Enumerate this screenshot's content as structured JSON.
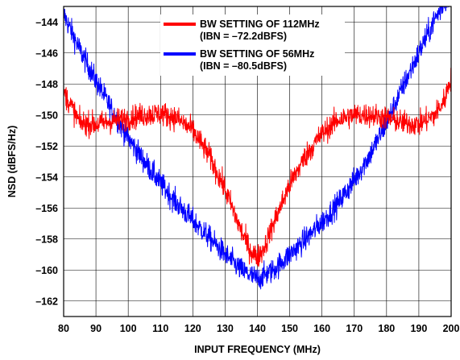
{
  "chart_data": {
    "type": "line",
    "xlabel": "INPUT FREQUENCY (MHz)",
    "ylabel": "NSD (dBFS/Hz)",
    "xlim": [
      80,
      200
    ],
    "ylim": [
      -163,
      -143
    ],
    "xticks": [
      80,
      90,
      100,
      110,
      120,
      130,
      140,
      150,
      160,
      170,
      180,
      190,
      200
    ],
    "yticks": [
      -144,
      -146,
      -148,
      -150,
      -152,
      -154,
      -156,
      -158,
      -160,
      -162
    ],
    "xtick_labels": [
      "80",
      "90",
      "100",
      "110",
      "120",
      "130",
      "140",
      "150",
      "160",
      "170",
      "180",
      "190",
      "200"
    ],
    "ytick_labels": [
      "–144",
      "–146",
      "–148",
      "–150",
      "–152",
      "–154",
      "–156",
      "–158",
      "–160",
      "–162"
    ],
    "grid": true,
    "legend_position": "top-center",
    "legend": [
      {
        "line1": "BW SETTING OF 112MHz",
        "line2": "(IBN = –72.2dBFS)",
        "color": "#ff0000"
      },
      {
        "line1": "BW SETTING OF 56MHz",
        "line2": "(IBN = –80.5dBFS)",
        "color": "#0000ff"
      }
    ],
    "series": [
      {
        "color": "#0000ff",
        "x": [
          80,
          85,
          90,
          95,
          100,
          105,
          110,
          115,
          120,
          125,
          130,
          135,
          140,
          145,
          150,
          155,
          160,
          165,
          170,
          175,
          180,
          185,
          190,
          195,
          200
        ],
        "y": [
          -143.5,
          -145.8,
          -147.8,
          -149.7,
          -151.5,
          -153.0,
          -154.4,
          -155.7,
          -156.8,
          -157.9,
          -159.0,
          -160.0,
          -160.6,
          -160.0,
          -159.0,
          -158.0,
          -156.9,
          -155.7,
          -154.2,
          -152.5,
          -150.5,
          -148.2,
          -146.0,
          -143.8,
          -142.0
        ],
        "noise": 0.55
      },
      {
        "color": "#ff0000",
        "x": [
          80,
          85,
          90,
          95,
          100,
          105,
          110,
          115,
          120,
          125,
          130,
          135,
          138,
          140,
          142,
          145,
          150,
          155,
          160,
          165,
          170,
          175,
          180,
          185,
          190,
          195,
          198,
          200
        ],
        "y": [
          -148.5,
          -150.5,
          -150.6,
          -150.4,
          -150.2,
          -150.0,
          -149.9,
          -150.2,
          -151.0,
          -152.6,
          -154.8,
          -157.5,
          -158.8,
          -159.2,
          -158.6,
          -157.0,
          -154.5,
          -152.6,
          -151.2,
          -150.3,
          -150.0,
          -150.0,
          -150.2,
          -150.5,
          -150.6,
          -150.0,
          -149.0,
          -147.5
        ],
        "noise": 0.55
      }
    ]
  }
}
